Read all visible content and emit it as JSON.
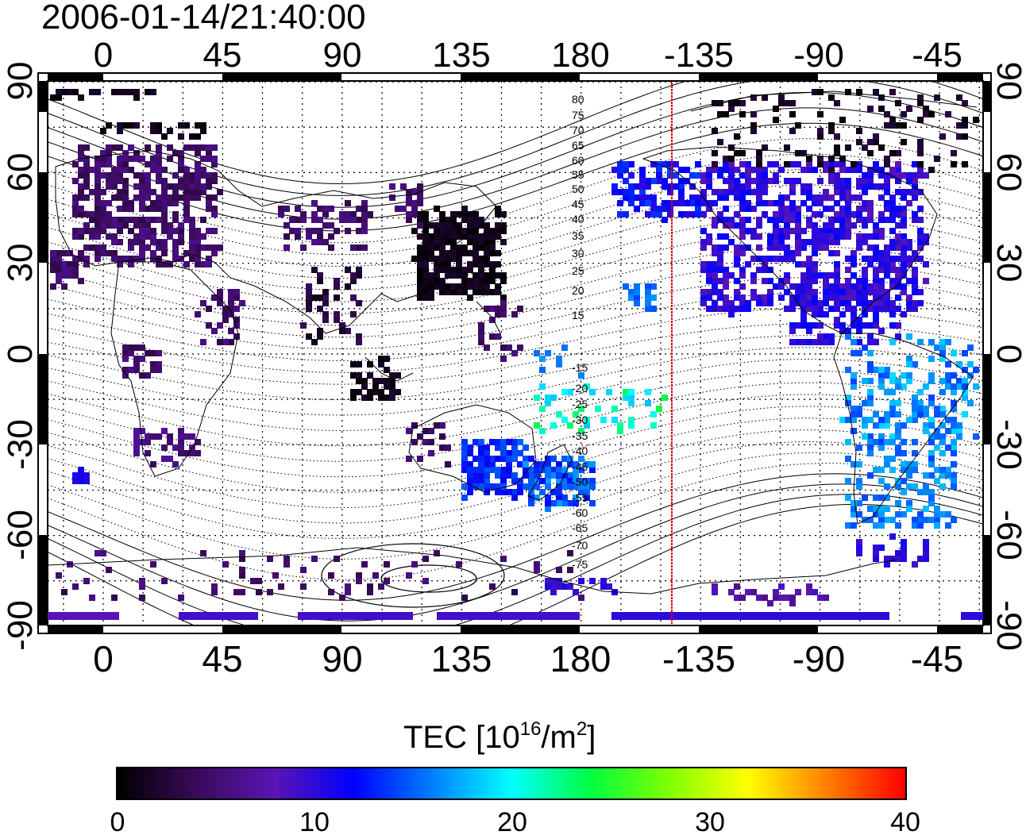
{
  "title": {
    "timestamp": "2006-01-14/21:40:00"
  },
  "map": {
    "lon_tick_labels": [
      "0",
      "45",
      "90",
      "135",
      "180",
      "-135",
      "-90",
      "-45"
    ],
    "lat_tick_labels_left": [
      "90",
      "60",
      "30",
      "0",
      "-30",
      "-60",
      "-90"
    ],
    "lat_tick_labels_right": [
      "90",
      "60",
      "30",
      "0",
      "-30",
      "-60",
      "-90"
    ],
    "contour_labels": [
      "80",
      "75",
      "70",
      "65",
      "60",
      "55",
      "50",
      "45",
      "40",
      "35",
      "30",
      "25",
      "20",
      "15",
      "-15",
      "-20",
      "-25",
      "-30",
      "-35",
      "-40",
      "-45",
      "-50",
      "-55",
      "-60",
      "-65",
      "-70",
      "-75"
    ],
    "terminator_line_color": "#e00000",
    "coastline_color": "#000000"
  },
  "colorbar": {
    "title_main": "TEC  [10",
    "title_sup1": "16",
    "title_mid": "/m",
    "title_sup2": "2",
    "title_end": "]",
    "tick_labels": [
      "0",
      "10",
      "20",
      "30",
      "40"
    ],
    "colors": [
      "#000000",
      "#3a0a5a",
      "#5a14b4",
      "#0000ff",
      "#0080ff",
      "#00ffff",
      "#00ff40",
      "#80ff00",
      "#ffff00",
      "#ff8000",
      "#ff0000"
    ]
  }
}
